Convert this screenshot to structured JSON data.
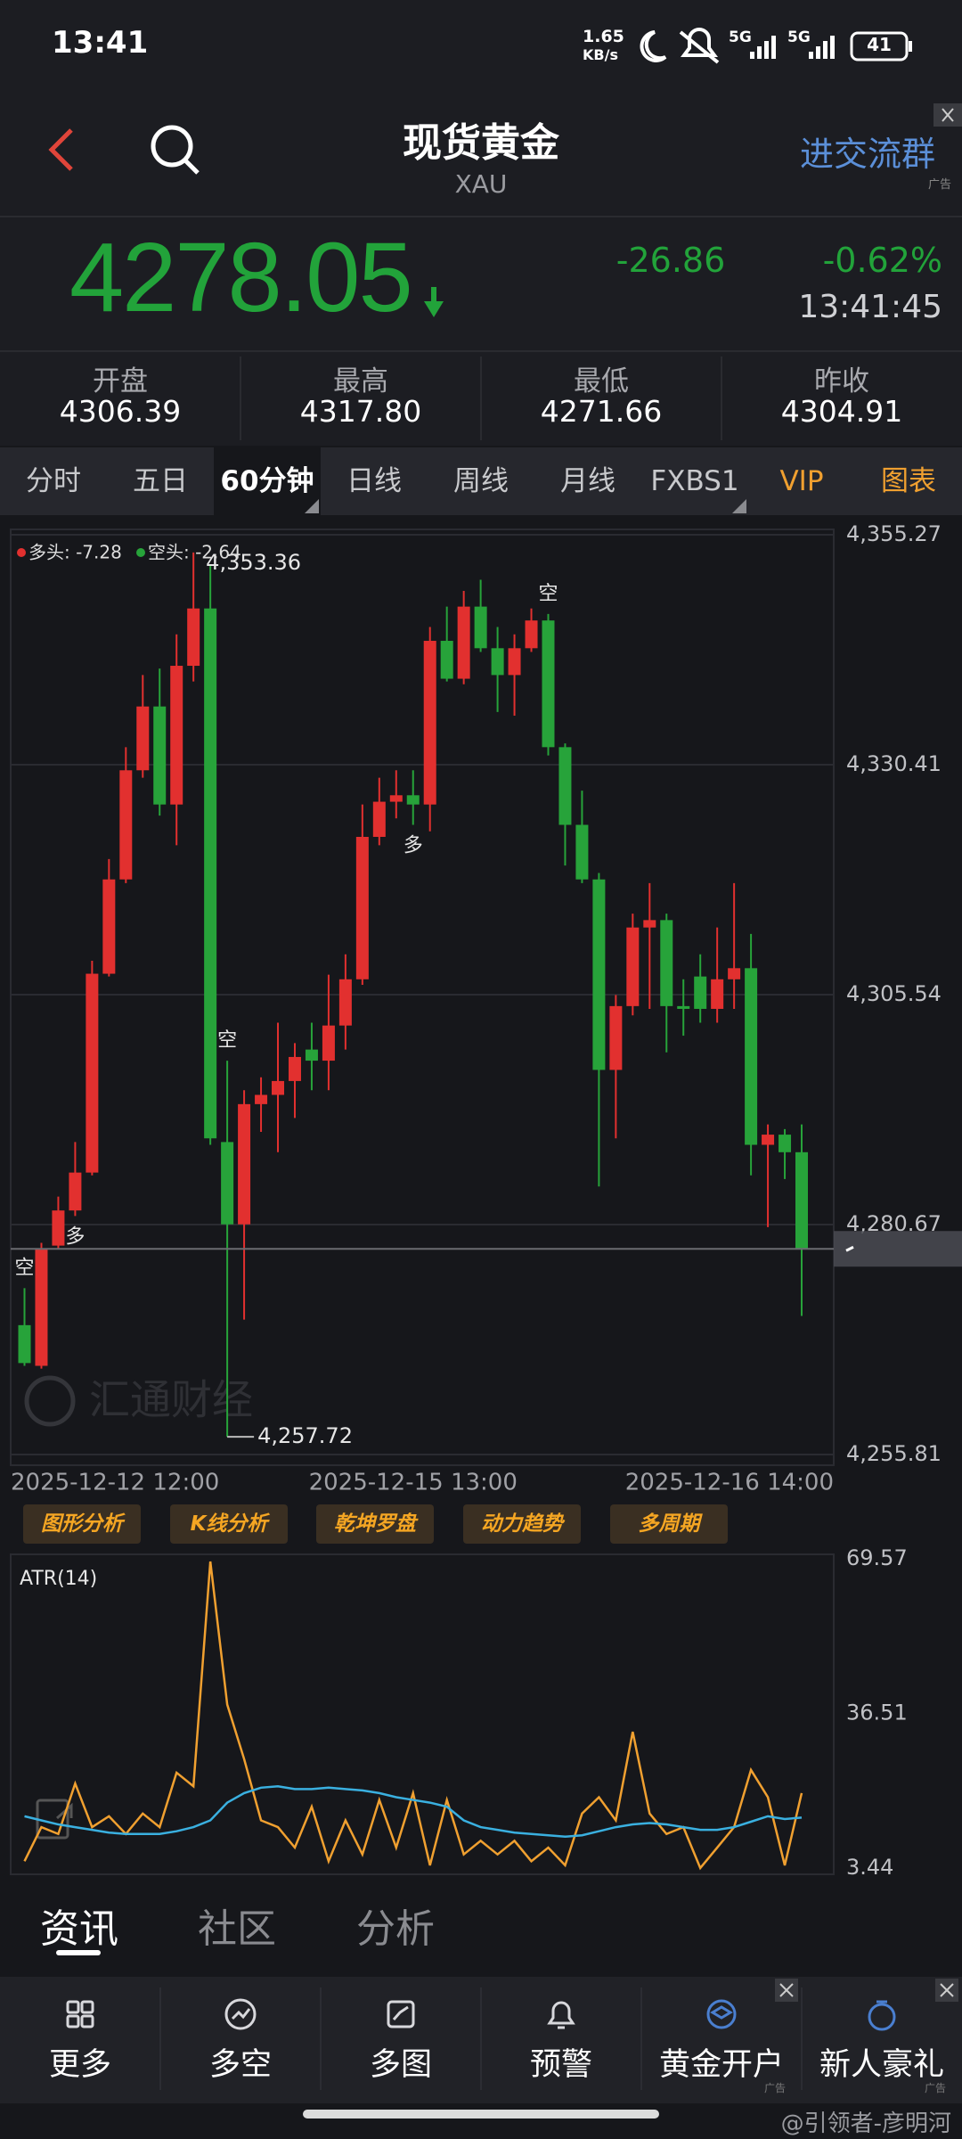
{
  "status_bar": {
    "time": "13:41",
    "net_speed": "1.65",
    "net_unit": "KB/s",
    "signal_1": "5G",
    "signal_2": "5G",
    "battery": "41"
  },
  "header": {
    "title": "现货黄金",
    "symbol": "XAU",
    "group_button": "进交流群",
    "ad_tag": "广告"
  },
  "quote": {
    "price": "4278.05",
    "change": "-26.86",
    "change_pct": "-0.62%",
    "time": "13:41:45",
    "color": "#22a33a"
  },
  "stats": [
    {
      "label": "开盘",
      "value": "4306.39"
    },
    {
      "label": "最高",
      "value": "4317.80"
    },
    {
      "label": "最低",
      "value": "4271.66"
    },
    {
      "label": "昨收",
      "value": "4304.91"
    }
  ],
  "tabs": [
    {
      "label": "分时"
    },
    {
      "label": "五日"
    },
    {
      "label": "60分钟",
      "active": true,
      "dropdown": true
    },
    {
      "label": "日线"
    },
    {
      "label": "周线"
    },
    {
      "label": "月线"
    },
    {
      "label": "FXBS1",
      "dropdown": true
    },
    {
      "label": "VIP",
      "color": "#f0a030"
    },
    {
      "label": "图表",
      "color": "#f0a030"
    }
  ],
  "chart_data": [
    {
      "type": "candlestick",
      "categories": [
        "2025-12-12 12:00",
        null,
        null,
        null,
        null,
        null,
        null,
        null,
        null,
        null,
        null,
        null,
        null,
        null,
        null,
        null,
        null,
        null,
        null,
        null,
        null,
        null,
        null,
        "2025-12-15 13:00",
        null,
        null,
        null,
        null,
        null,
        null,
        null,
        null,
        null,
        null,
        null,
        null,
        null,
        null,
        null,
        null,
        null,
        null,
        null,
        null,
        null,
        null,
        "2025-12-16 14:00"
      ],
      "open": [
        4269.8,
        4265.4,
        4278.4,
        4282.2,
        4286.3,
        4307.8,
        4318.0,
        4329.8,
        4336.7,
        4326.1,
        4341.1,
        4347.3,
        4289.6,
        4280.7,
        4293.7,
        4294.7,
        4296.2,
        4299.6,
        4298.4,
        4302.2,
        4307.2,
        4322.6,
        4326.4,
        4327.1,
        4326.1,
        4343.8,
        4339.7,
        4347.5,
        4343.0,
        4340.1,
        4343.0,
        4346.0,
        4332.3,
        4323.9,
        4318.0,
        4297.4,
        4304.3,
        4312.8,
        4313.6,
        4304.3,
        4307.5,
        4304.0,
        4307.2,
        4308.4,
        4289.3,
        4290.4,
        4288.5
      ],
      "high": [
        4273.8,
        4278.7,
        4283.7,
        4289.6,
        4309.2,
        4320.2,
        4332.3,
        4340.1,
        4340.8,
        4344.5,
        4353.36,
        4351.9,
        4298.4,
        4295.2,
        4296.6,
        4302.5,
        4300.3,
        4302.5,
        4307.7,
        4309.9,
        4326.1,
        4329.0,
        4329.8,
        4329.8,
        4345.3,
        4347.5,
        4349.2,
        4350.4,
        4345.3,
        4344.5,
        4347.3,
        4346.7,
        4332.7,
        4327.6,
        4318.7,
        4305.5,
        4314.3,
        4317.6,
        4314.3,
        4307.2,
        4309.9,
        4312.8,
        4317.6,
        4312.1,
        4291.5,
        4291.0,
        4291.5
      ],
      "low": [
        4265.4,
        4265.1,
        4278.1,
        4281.6,
        4286.0,
        4307.5,
        4317.6,
        4329.0,
        4324.9,
        4321.7,
        4339.4,
        4289.3,
        4257.72,
        4270.4,
        4290.7,
        4288.5,
        4292.2,
        4295.2,
        4295.2,
        4299.6,
        4306.6,
        4321.7,
        4324.6,
        4323.9,
        4323.2,
        4339.4,
        4339.1,
        4342.6,
        4336.1,
        4335.7,
        4342.6,
        4331.4,
        4319.5,
        4317.6,
        4284.8,
        4290.0,
        4303.3,
        4304.0,
        4299.3,
        4301.1,
        4302.5,
        4302.5,
        4304.0,
        4286.0,
        4280.4,
        4285.6,
        4270.8
      ],
      "close": [
        4265.7,
        4278.1,
        4282.2,
        4286.3,
        4307.8,
        4318.0,
        4329.8,
        4336.7,
        4326.1,
        4341.1,
        4347.3,
        4290.0,
        4280.7,
        4293.7,
        4294.7,
        4296.2,
        4298.8,
        4298.4,
        4302.2,
        4307.2,
        4322.6,
        4326.4,
        4327.1,
        4326.1,
        4343.8,
        4339.7,
        4347.5,
        4343.0,
        4340.1,
        4343.0,
        4346.0,
        4332.3,
        4323.9,
        4318.0,
        4297.4,
        4304.3,
        4312.8,
        4313.6,
        4304.3,
        4304.0,
        4304.0,
        4307.2,
        4308.4,
        4289.3,
        4290.4,
        4288.5,
        4278.05
      ],
      "up_color": "#e2302f",
      "down_color": "#27a33a",
      "signals": [
        "空",
        null,
        null,
        "多",
        null,
        null,
        null,
        null,
        null,
        null,
        null,
        null,
        "空",
        null,
        null,
        null,
        null,
        null,
        null,
        null,
        null,
        null,
        null,
        "多",
        null,
        null,
        null,
        null,
        null,
        null,
        null,
        "空",
        null,
        null,
        null,
        null,
        null,
        null,
        null,
        null,
        null,
        null,
        null,
        null,
        null,
        null,
        null
      ],
      "signal_marks": {
        "above": "空",
        "below": "多"
      },
      "legend": [
        {
          "label": "多头: -7.28",
          "color": "#e2302f"
        },
        {
          "label": "空头: -2.64",
          "color": "#27a33a"
        }
      ],
      "max_label": "4,353.36",
      "min_label": "4,257.72",
      "watermark": "汇通财经",
      "ylim": [
        4255.81,
        4355.27
      ],
      "yticks": [
        {
          "value": 4355.27,
          "label": "4,355.27"
        },
        {
          "value": 4330.41,
          "label": "4,330.41"
        },
        {
          "value": 4305.54,
          "label": "4,305.54"
        },
        {
          "value": 4280.67,
          "label": "4,280.67"
        },
        {
          "value": 4255.81,
          "label": "4,255.81"
        }
      ],
      "grid": true
    },
    {
      "type": "line",
      "title": "ATR(14)",
      "series": [
        {
          "color": "#f0a030",
          "values": [
            4.9,
            12.19,
            10.73,
            21.51,
            12.19,
            14.52,
            10.73,
            15.1,
            12.19,
            23.84,
            20.92,
            68.99,
            38.4,
            26.75,
            13.64,
            12.19,
            7.82,
            16.56,
            4.9,
            13.64,
            6.36,
            18.01,
            7.82,
            19.47,
            4.03,
            18.01,
            6.36,
            9.27,
            6.36,
            9.27,
            4.9,
            7.82,
            4.03,
            15.1,
            18.59,
            13.64,
            32.58,
            15.1,
            10.73,
            12.19,
            3.45,
            7.82,
            12.19,
            24.42,
            18.59,
            4.03,
            19.47
          ]
        },
        {
          "color": "#3ab0e0",
          "values": [
            14.52,
            13.64,
            12.77,
            12.19,
            11.61,
            11.02,
            10.73,
            10.73,
            10.73,
            11.31,
            12.19,
            13.64,
            17.43,
            19.47,
            20.63,
            20.92,
            20.34,
            20.34,
            20.63,
            20.34,
            20.05,
            19.47,
            18.59,
            18.01,
            17.43,
            16.56,
            13.64,
            12.19,
            11.61,
            11.02,
            10.73,
            10.44,
            10.15,
            10.44,
            11.31,
            12.19,
            12.77,
            13.06,
            12.77,
            12.19,
            11.61,
            11.61,
            12.19,
            13.35,
            14.52,
            13.93,
            14.23
          ]
        }
      ],
      "ylim": [
        3.44,
        69.57
      ],
      "yticks": [
        69.57,
        36.51,
        3.44
      ],
      "grid": false
    }
  ],
  "tools": [
    "图形分析",
    "K线分析",
    "乾坤罗盘",
    "动力趋势",
    "多周期"
  ],
  "section_tabs": [
    {
      "label": "资讯",
      "active": true
    },
    {
      "label": "社区"
    },
    {
      "label": "分析"
    }
  ],
  "nav": [
    {
      "label": "更多",
      "icon": "grid"
    },
    {
      "label": "多空",
      "icon": "trend"
    },
    {
      "label": "多图",
      "icon": "images"
    },
    {
      "label": "预警",
      "icon": "bell"
    },
    {
      "label": "黄金开户",
      "icon": "hat",
      "ad": true
    },
    {
      "label": "新人豪礼",
      "icon": "bag",
      "ad": true
    }
  ],
  "footer_watermark": "@引领者-彦明河"
}
